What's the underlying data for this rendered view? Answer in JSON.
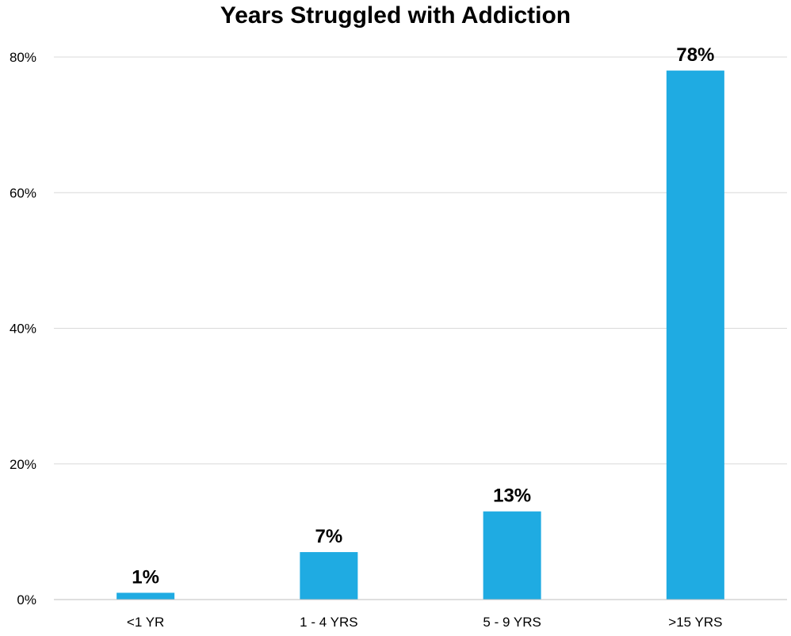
{
  "chart_data": {
    "type": "bar",
    "title": "Years Struggled with Addiction",
    "xlabel": "",
    "ylabel": "",
    "categories": [
      "<1 YR",
      "1 - 4 YRS",
      "5 - 9 YRS",
      ">15 YRS"
    ],
    "values": [
      1,
      7,
      13,
      78
    ],
    "data_labels": [
      "1%",
      "7%",
      "13%",
      "78%"
    ],
    "y_ticks": [
      0,
      20,
      40,
      60,
      80
    ],
    "y_tick_labels": [
      "0%",
      "20%",
      "40%",
      "60%",
      "80%"
    ],
    "ylim": [
      0,
      80
    ],
    "grid": true,
    "legend": "none",
    "bar_color": "#1fabe2"
  }
}
